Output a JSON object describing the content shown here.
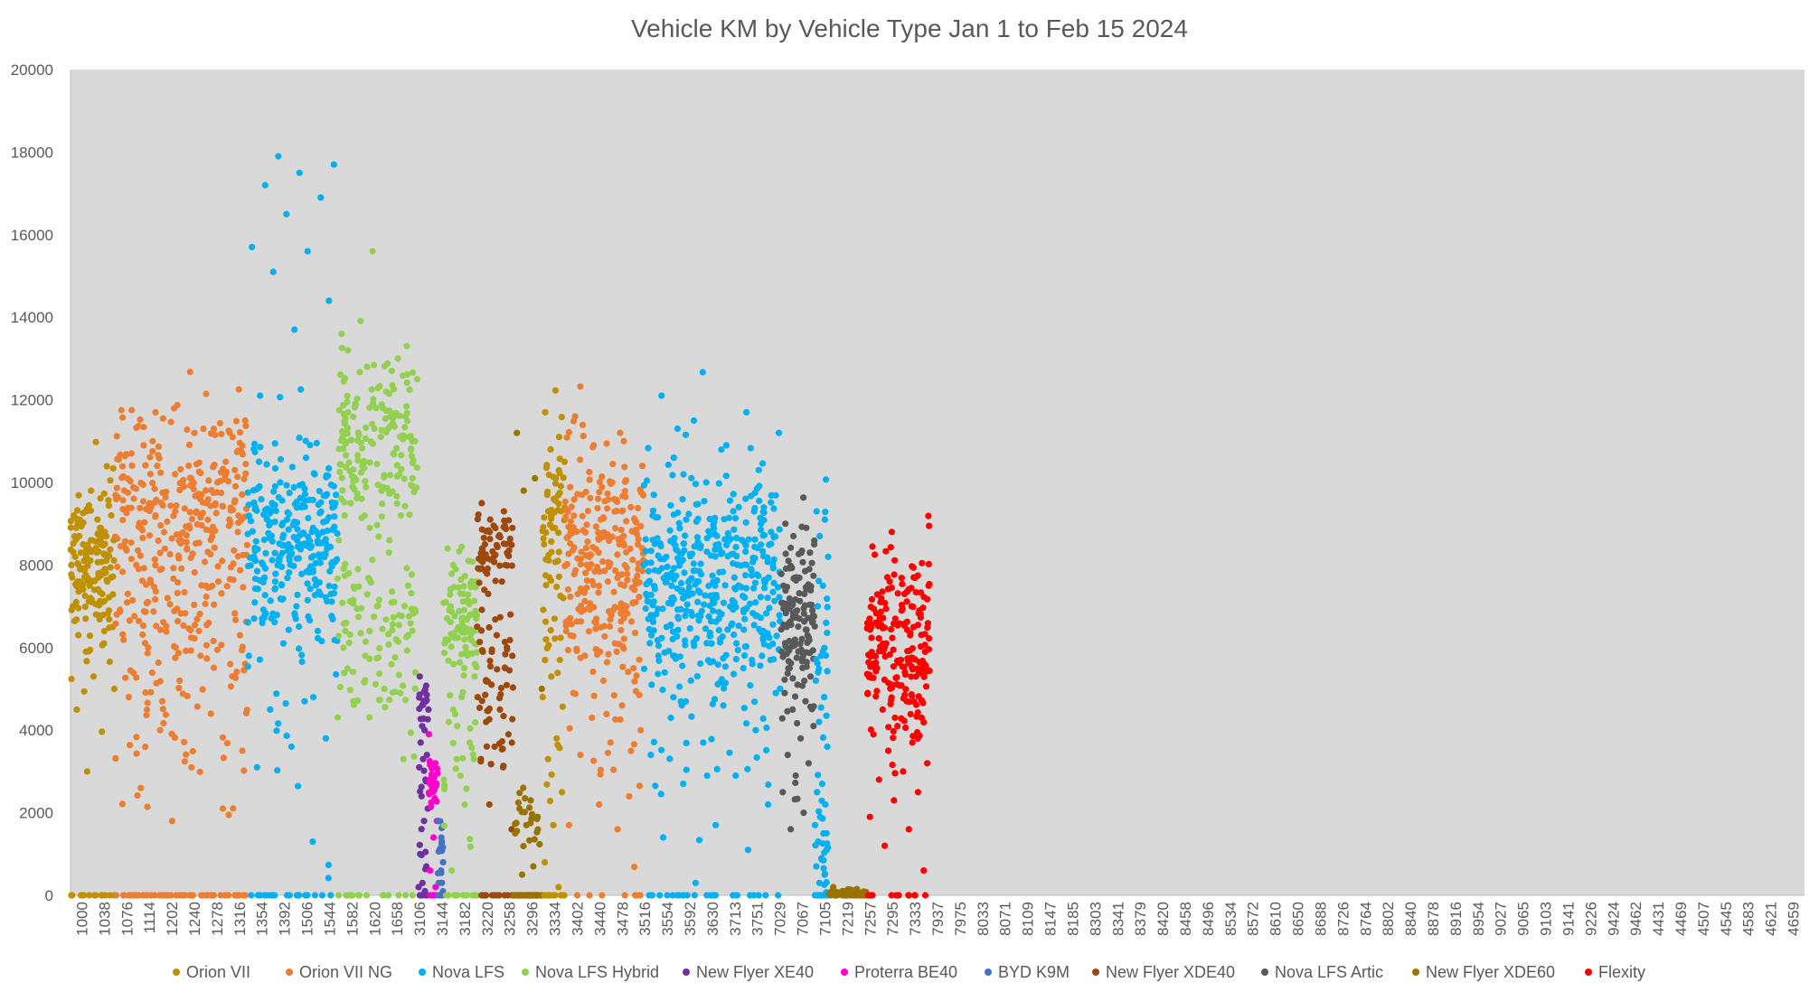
{
  "chart_data": {
    "type": "scatter",
    "title": "Vehicle KM by Vehicle Type Jan 1 to Feb 15 2024",
    "xlabel": "",
    "ylabel": "",
    "ylim": [
      0,
      20000
    ],
    "y_ticks": [
      0,
      2000,
      4000,
      6000,
      8000,
      10000,
      12000,
      14000,
      16000,
      18000,
      20000
    ],
    "grid": false,
    "plot_background": "#d9d9d9",
    "legend_position": "bottom",
    "x_tick_labels": [
      "1000",
      "1038",
      "1076",
      "1114",
      "1202",
      "1240",
      "1278",
      "1316",
      "1354",
      "1392",
      "1506",
      "1544",
      "1582",
      "1620",
      "1658",
      "3106",
      "3144",
      "3182",
      "3220",
      "3258",
      "3296",
      "3334",
      "3402",
      "3440",
      "3478",
      "3516",
      "3554",
      "3592",
      "3630",
      "3713",
      "3751",
      "7029",
      "7067",
      "7105",
      "7219",
      "7257",
      "7295",
      "7333",
      "7937",
      "7975",
      "8033",
      "8071",
      "8109",
      "8147",
      "8185",
      "8303",
      "8341",
      "8379",
      "8420",
      "8458",
      "8496",
      "8534",
      "8572",
      "8610",
      "8650",
      "8688",
      "8726",
      "8764",
      "8802",
      "8840",
      "8878",
      "8916",
      "8954",
      "9027",
      "9065",
      "9103",
      "9141",
      "9226",
      "9424",
      "9462",
      "4431",
      "4469",
      "4507",
      "4545",
      "4583",
      "4621",
      "4659"
    ],
    "series": [
      {
        "name": "Orion VII",
        "color": "#bf9000",
        "x_range": [
          0,
          1.95
        ],
        "clusters": [
          [
            0.9,
            8000,
            1000
          ],
          [
            0.1,
            0,
            0
          ]
        ],
        "values": [
          8900,
          8700,
          9300,
          8600,
          8300,
          7900,
          7600,
          7200,
          9200,
          8500,
          8100,
          7700,
          7400,
          9000,
          8800,
          8400,
          8000,
          7800,
          7500,
          6900,
          8600,
          8200,
          7100,
          6700,
          6500,
          6800,
          8700,
          8100,
          7500,
          7000,
          8900,
          8500,
          10050,
          5300,
          4500,
          6100,
          3000,
          5000,
          9100,
          8300
        ]
      },
      {
        "name": "Orion VII NG",
        "color": "#ed7d31",
        "x_range": [
          1.95,
          7.85
        ],
        "clusters": [
          [
            0.55,
            9600,
            1100
          ],
          [
            0.2,
            6600,
            900
          ],
          [
            0.1,
            4200,
            1300
          ],
          [
            0.15,
            0,
            0
          ]
        ],
        "values": [
          11750,
          11300,
          11550,
          11500,
          11200,
          10900,
          10500,
          10200,
          9800,
          9500,
          9200,
          8800,
          8400,
          8000,
          7600,
          7200,
          6800,
          6400,
          6000,
          5600,
          5200,
          4800,
          4400,
          4000,
          3500,
          3100,
          2600,
          2100,
          1800,
          11750,
          11300,
          11000,
          10300,
          9900
        ]
      },
      {
        "name": "Nova LFS",
        "color": "#00b0f0",
        "x_range": [
          7.85,
          11.85
        ],
        "clusters": [
          [
            0.88,
            8600,
            1150
          ],
          [
            0.05,
            5000,
            1800
          ],
          [
            0.07,
            0,
            0
          ]
        ],
        "values": [
          10500,
          10200,
          10000,
          9700,
          9400,
          9100,
          8800,
          8500,
          8200,
          7900,
          7600,
          7300,
          7000,
          6700,
          6400,
          6100,
          5800,
          4700,
          4500,
          3800,
          3600,
          3100,
          1300,
          17900,
          17700,
          17500,
          17200,
          16900,
          16500,
          15700,
          15600,
          15100,
          14400,
          13700,
          12100
        ]
      },
      {
        "name": "Nova LFS Hybrid",
        "color": "#92d050",
        "x_range": [
          11.85,
          15.45
        ],
        "clusters": [
          [
            0.6,
            10800,
            1000
          ],
          [
            0.22,
            6800,
            500
          ],
          [
            0.12,
            5200,
            700
          ],
          [
            0.06,
            0,
            0
          ]
        ],
        "values": [
          13200,
          13000,
          12800,
          12500,
          12200,
          11900,
          11600,
          11300,
          11000,
          10700,
          10400,
          10100,
          9800,
          9500,
          9200,
          8900,
          8600,
          8300,
          7900,
          7500,
          7000,
          6600,
          6200,
          5800,
          5400,
          5000,
          4700,
          3300,
          15600,
          13600,
          12700
        ]
      },
      {
        "name": "New Flyer XE40",
        "color": "#7030a0",
        "x_range": [
          15.45,
          15.9
        ],
        "clusters": [
          [
            0.45,
            4600,
            300
          ],
          [
            0.25,
            2000,
            900
          ],
          [
            0.3,
            0,
            0
          ]
        ],
        "values": [
          5300,
          4700,
          4600,
          4500,
          4000,
          3700,
          3400,
          3300,
          3100,
          2800,
          2400,
          2100,
          1800,
          1000,
          700,
          300,
          200,
          100
        ]
      },
      {
        "name": "Proterra BE40",
        "color": "#ff00cc",
        "x_range": [
          15.9,
          16.3
        ],
        "clusters": [
          [
            0.75,
            2700,
            350
          ],
          [
            0.25,
            0,
            0
          ]
        ],
        "values": [
          3250,
          3200,
          3100,
          2950,
          2850,
          2750,
          2650,
          2550,
          2450,
          2350,
          2250,
          1800,
          1400,
          600,
          200
        ]
      },
      {
        "name": "BYD K9M",
        "color": "#4472c4",
        "x_range": [
          16.3,
          16.55
        ],
        "clusters": [
          [
            0.7,
            1000,
            600
          ],
          [
            0.3,
            0,
            0
          ]
        ],
        "values": [
          1800,
          1300,
          1100,
          800,
          600,
          300
        ]
      },
      {
        "name": "Nova LFS Hybrid (2)",
        "color": "#92d050",
        "x_range": [
          16.55,
          18.05
        ],
        "clusters": [
          [
            0.7,
            6600,
            800
          ],
          [
            0.15,
            3300,
            900
          ],
          [
            0.15,
            0,
            0
          ]
        ],
        "values": [
          8400,
          8100,
          7900,
          7600,
          7300,
          7000,
          6800,
          6500,
          6200,
          5900,
          5600,
          5300,
          4800,
          4200,
          3700,
          3300,
          2800,
          2200,
          600
        ]
      },
      {
        "name": "New Flyer XDE40",
        "color": "#9e480e",
        "x_range": [
          18.05,
          19.65
        ],
        "clusters": [
          [
            0.45,
            8400,
            500
          ],
          [
            0.3,
            5600,
            700
          ],
          [
            0.1,
            3600,
            500
          ],
          [
            0.15,
            0,
            0
          ]
        ],
        "values": [
          9500,
          9300,
          9100,
          8900,
          8700,
          8500,
          8300,
          8100,
          7900,
          7600,
          7300,
          6800,
          6300,
          5900,
          5500,
          5100,
          4800,
          4500,
          4200,
          3900,
          3600,
          3300,
          3100,
          2200,
          1600
        ]
      },
      {
        "name": "New Flyer XDE60",
        "color": "#997300",
        "x_range": [
          19.65,
          20.95
        ],
        "clusters": [
          [
            0.2,
            1800,
            400
          ],
          [
            0.8,
            0,
            0
          ]
        ],
        "values": [
          11200,
          10100,
          9800,
          5000,
          2300,
          2100,
          1900,
          1700,
          1500,
          700,
          500
        ]
      },
      {
        "name": "Orion VII (2)",
        "color": "#bf9000",
        "x_range": [
          20.95,
          21.95
        ],
        "clusters": [
          [
            0.72,
            9000,
            1300
          ],
          [
            0.1,
            4000,
            1500
          ],
          [
            0.18,
            0,
            0
          ]
        ],
        "values": [
          11700,
          11100,
          10800,
          10500,
          10100,
          9700,
          9300,
          8900,
          8500,
          8100,
          7700,
          7200,
          6700,
          6200,
          5700,
          5300,
          4800,
          3800,
          3300,
          2500,
          1700,
          800,
          200
        ]
      },
      {
        "name": "Orion VII NG (2)",
        "color": "#ed7d31",
        "x_range": [
          21.95,
          25.45
        ],
        "clusters": [
          [
            0.93,
            8000,
            1350
          ],
          [
            0.04,
            3000,
            900
          ],
          [
            0.03,
            0,
            0
          ]
        ],
        "values": [
          11600,
          11000,
          10900,
          10400,
          10000,
          9700,
          9400,
          9100,
          8800,
          8500,
          8200,
          7900,
          7600,
          7300,
          7000,
          6700,
          6400,
          6100,
          5800,
          5500,
          5200,
          4900,
          4600,
          4300,
          4000,
          3700,
          3400,
          2400,
          2200,
          1700,
          1600
        ]
      },
      {
        "name": "Nova LFS (2)",
        "color": "#00b0f0",
        "x_range": [
          25.45,
          31.55
        ],
        "clusters": [
          [
            0.9,
            7600,
            1350
          ],
          [
            0.05,
            3800,
            1200
          ],
          [
            0.05,
            0,
            0
          ]
        ],
        "values": [
          12100,
          11700,
          11500,
          11200,
          10900,
          10600,
          10300,
          10000,
          9700,
          9400,
          9100,
          8800,
          8500,
          8200,
          7900,
          7600,
          7300,
          7000,
          6700,
          6400,
          6100,
          5800,
          5500,
          5200,
          4900,
          4600,
          4300,
          4000,
          3700,
          3400,
          2900,
          2700,
          2200,
          1700,
          1400,
          1100,
          300
        ]
      },
      {
        "name": "Nova LFS Artic",
        "color": "#595959",
        "x_range": [
          31.55,
          33.05
        ],
        "clusters": [
          [
            0.97,
            6500,
            1100
          ],
          [
            0.03,
            2500,
            500
          ]
        ],
        "values": [
          9000,
          8900,
          8700,
          8500,
          8300,
          8100,
          7900,
          7700,
          7500,
          7300,
          7100,
          6900,
          6700,
          6500,
          6300,
          6100,
          5900,
          5700,
          5500,
          5300,
          5100,
          4900,
          4700,
          4500,
          4100,
          3800,
          3400,
          3200,
          2900,
          2500,
          2000,
          1600
        ]
      },
      {
        "name": "Nova LFS (3)",
        "color": "#00b0f0",
        "x_range": [
          33.05,
          33.65
        ],
        "clusters": [
          [
            0.45,
            6500,
            2000
          ],
          [
            0.3,
            1300,
            600
          ],
          [
            0.25,
            0,
            0
          ]
        ],
        "values": [
          9300,
          9100,
          8700,
          8200,
          7500,
          7000,
          6600,
          5800,
          5200,
          4800,
          4200,
          3600,
          2700,
          2500,
          2200,
          1900,
          1700,
          1500,
          1300,
          1100,
          900,
          700,
          500,
          300
        ]
      },
      {
        "name": "New Flyer XDE60 (2)",
        "color": "#997300",
        "x_range": [
          33.65,
          35.35
        ],
        "clusters": [
          [
            1.0,
            30,
            40
          ]
        ],
        "values": [
          200,
          150,
          100,
          80,
          60,
          40,
          20,
          10
        ]
      },
      {
        "name": "Flexity",
        "color": "#ff0000",
        "x_range": [
          35.35,
          38.15
        ],
        "clusters": [
          [
            0.93,
            6000,
            1150
          ],
          [
            0.07,
            0,
            0
          ]
        ],
        "values": [
          8250,
          7700,
          7600,
          7500,
          7300,
          7100,
          6900,
          6700,
          6500,
          6300,
          6100,
          5900,
          5700,
          5500,
          5300,
          5100,
          4900,
          4700,
          4500,
          4300,
          4100,
          3900,
          3700,
          3500,
          3200,
          3000,
          2800,
          2500,
          2300,
          1900,
          1600,
          1200,
          600
        ]
      }
    ]
  },
  "legend": [
    {
      "label": "Orion VII",
      "color": "#bf9000"
    },
    {
      "label": "Orion VII NG",
      "color": "#ed7d31"
    },
    {
      "label": "Nova LFS",
      "color": "#00b0f0"
    },
    {
      "label": "Nova LFS Hybrid",
      "color": "#92d050"
    },
    {
      "label": "New Flyer XE40",
      "color": "#7030a0"
    },
    {
      "label": "Proterra BE40",
      "color": "#ff00cc"
    },
    {
      "label": "BYD K9M",
      "color": "#4472c4"
    },
    {
      "label": "New Flyer XDE40",
      "color": "#9e480e"
    },
    {
      "label": "Nova LFS Artic",
      "color": "#595959"
    },
    {
      "label": "New Flyer XDE60",
      "color": "#997300"
    },
    {
      "label": "Flexity",
      "color": "#ff0000"
    }
  ]
}
